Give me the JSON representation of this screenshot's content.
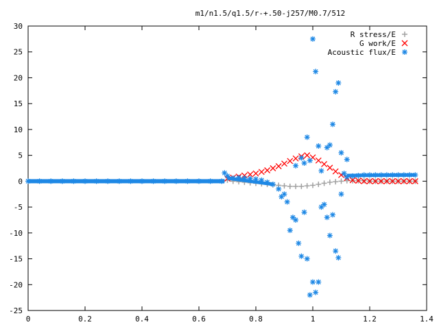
{
  "chart_data": {
    "type": "scatter",
    "title": "m1/n1.5/q1.5/r-+.50-j257/M0.7/512",
    "xlabel": "",
    "ylabel": "",
    "xlim": [
      0,
      1.4
    ],
    "ylim": [
      -25,
      30
    ],
    "grid": false,
    "legend_position": "top-right",
    "x_ticks": [
      0,
      0.2,
      0.4,
      0.6,
      0.8,
      1,
      1.2,
      1.4
    ],
    "x_tick_labels": [
      "0",
      "0.2",
      "0.4",
      "0.6",
      "0.8",
      "1",
      "1.2",
      "1.4"
    ],
    "y_ticks": [
      -25,
      -20,
      -15,
      -10,
      -5,
      0,
      5,
      10,
      15,
      20,
      25,
      30
    ],
    "y_tick_labels": [
      "-25",
      "-20",
      "-15",
      "-10",
      "-5",
      "0",
      "5",
      "10",
      "15",
      "20",
      "25",
      "30"
    ],
    "series": [
      {
        "name": "R stress/E",
        "marker": "plus",
        "color": "#a0a0a0",
        "x": [
          0.7,
          0.72,
          0.74,
          0.76,
          0.78,
          0.8,
          0.82,
          0.84,
          0.86,
          0.88,
          0.9,
          0.92,
          0.94,
          0.96,
          0.98,
          1.0,
          1.02,
          1.04,
          1.06,
          1.08,
          1.1,
          1.12,
          1.14,
          1.16,
          1.18,
          1.2,
          1.22,
          1.24,
          1.26,
          1.28,
          1.3,
          1.32,
          1.34,
          1.36
        ],
        "y": [
          0.2,
          0.0,
          -0.1,
          -0.2,
          -0.3,
          -0.4,
          -0.5,
          -0.6,
          -0.7,
          -0.8,
          -0.9,
          -1.0,
          -1.0,
          -1.0,
          -0.9,
          -0.8,
          -0.6,
          -0.4,
          -0.2,
          -0.1,
          0.0,
          0.1,
          0.1,
          0.1,
          0.1,
          0.0,
          0.0,
          0.0,
          0.0,
          0.0,
          0.0,
          0.0,
          0.0,
          0.0
        ]
      },
      {
        "name": "G work/E",
        "marker": "cross",
        "color": "#ff0000",
        "x": [
          0.7,
          0.72,
          0.74,
          0.76,
          0.78,
          0.8,
          0.82,
          0.84,
          0.86,
          0.88,
          0.9,
          0.92,
          0.94,
          0.96,
          0.98,
          1.0,
          1.02,
          1.04,
          1.06,
          1.08,
          1.1,
          1.12,
          1.14,
          1.16,
          1.18,
          1.2,
          1.22,
          1.24,
          1.26,
          1.28,
          1.3,
          1.32,
          1.34,
          1.36
        ],
        "y": [
          0.5,
          0.7,
          0.9,
          1.1,
          1.3,
          1.5,
          1.8,
          2.1,
          2.5,
          2.9,
          3.4,
          3.9,
          4.4,
          4.8,
          5.0,
          4.6,
          4.0,
          3.3,
          2.6,
          1.9,
          1.2,
          0.6,
          0.2,
          0.1,
          0.0,
          0.0,
          0.0,
          0.0,
          0.0,
          0.0,
          0.0,
          0.0,
          0.0,
          0.0
        ]
      },
      {
        "name": "Acoustic flux/E",
        "marker": "star",
        "color": "#1e88e5",
        "x": [
          0.0,
          0.04,
          0.08,
          0.12,
          0.16,
          0.2,
          0.24,
          0.28,
          0.32,
          0.36,
          0.4,
          0.44,
          0.48,
          0.52,
          0.56,
          0.6,
          0.64,
          0.68,
          0.69,
          0.7,
          0.72,
          0.74,
          0.76,
          0.78,
          0.8,
          0.82,
          0.84,
          0.86,
          0.88,
          0.89,
          0.9,
          0.91,
          0.92,
          0.93,
          0.94,
          0.95,
          0.96,
          0.97,
          0.98,
          0.99,
          1.0,
          1.01,
          1.02,
          1.03,
          1.04,
          1.05,
          1.06,
          1.07,
          1.08,
          1.09,
          1.1,
          1.11,
          1.12,
          1.14,
          1.16,
          1.18,
          1.2,
          1.22,
          1.24,
          1.26,
          1.28,
          1.3,
          1.32,
          1.34,
          1.36,
          1.0,
          1.01,
          1.08,
          1.09,
          0.97,
          0.98,
          1.07,
          1.05,
          0.99,
          1.02,
          1.03,
          0.96,
          0.94,
          1.06,
          1.1,
          1.12
        ],
        "y": [
          0.0,
          0.0,
          0.0,
          0.0,
          0.0,
          0.0,
          0.0,
          0.0,
          0.0,
          0.0,
          0.0,
          0.0,
          0.0,
          0.0,
          0.0,
          0.0,
          0.0,
          0.0,
          1.6,
          1.0,
          0.6,
          0.7,
          0.6,
          0.5,
          0.4,
          0.2,
          -0.2,
          -0.6,
          -1.5,
          -3.0,
          -2.5,
          -4.0,
          -9.5,
          -7.0,
          -7.5,
          -12.0,
          -14.5,
          -6.0,
          -15.0,
          -22.0,
          -19.5,
          -21.5,
          -19.5,
          -5.0,
          -4.5,
          -7.0,
          -10.5,
          -6.5,
          -13.5,
          -14.8,
          -2.5,
          1.5,
          0.8,
          1.0,
          1.1,
          1.2,
          1.2,
          1.2,
          1.2,
          1.2,
          1.2,
          1.2,
          1.2,
          1.2,
          1.2,
          27.5,
          21.2,
          17.3,
          19.0,
          3.5,
          8.5,
          11.0,
          6.5,
          4.0,
          6.8,
          2.0,
          4.5,
          3.0,
          7.0,
          5.5,
          4.2
        ]
      }
    ]
  }
}
